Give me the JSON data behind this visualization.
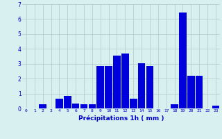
{
  "categories": [
    0,
    1,
    2,
    3,
    4,
    5,
    6,
    7,
    8,
    9,
    10,
    11,
    12,
    13,
    14,
    15,
    16,
    17,
    18,
    19,
    20,
    21,
    22,
    23
  ],
  "values": [
    0,
    0,
    0.3,
    0,
    0.65,
    0.85,
    0.35,
    0.3,
    0.3,
    2.85,
    2.85,
    3.55,
    3.7,
    0.65,
    3.05,
    2.85,
    0,
    0,
    0.3,
    6.45,
    2.2,
    2.2,
    0,
    0.2
  ],
  "bar_color": "#0000dd",
  "background_color": "#d8f0f0",
  "grid_color": "#b0c8c8",
  "xlabel": "Précipitations 1h ( mm )",
  "xlabel_color": "#0000cc",
  "tick_color": "#0000cc",
  "ylim": [
    0,
    7
  ],
  "yticks": [
    0,
    1,
    2,
    3,
    4,
    5,
    6,
    7
  ]
}
